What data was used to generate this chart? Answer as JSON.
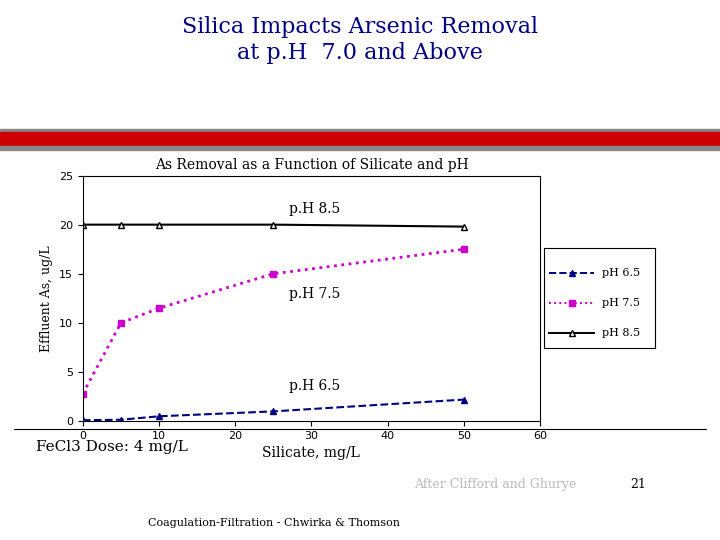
{
  "slide_title": "Silica Impacts Arsenic Removal\nat p.H  7.0 and Above",
  "chart_title": "As Removal as a Function of Silicate and pH",
  "xlabel": "Silicate, mg/L",
  "ylabel": "Effluent As, ug/L",
  "footer_left": "FeCl3 Dose: 4 mg/L",
  "footer_center": "After Clifford and Ghurye",
  "footer_page": "21",
  "footer_bottom": "Coagulation-Filtration - Chwirka & Thomson",
  "xlim": [
    0,
    60
  ],
  "ylim": [
    0,
    25
  ],
  "xticks": [
    0,
    10,
    20,
    30,
    40,
    50,
    60
  ],
  "yticks": [
    0,
    5,
    10,
    15,
    20,
    25
  ],
  "ph65": {
    "x": [
      0,
      5,
      10,
      25,
      50
    ],
    "y": [
      0.1,
      0.15,
      0.5,
      1.0,
      2.2
    ],
    "color": "#000080",
    "label": "pH 6.5",
    "linestyle": "--",
    "marker": "^",
    "annotation": "p.H 6.5",
    "ann_x": 27,
    "ann_y": 3.2
  },
  "ph75": {
    "x": [
      0,
      5,
      10,
      25,
      50
    ],
    "y": [
      2.8,
      10.0,
      11.5,
      15.0,
      17.5
    ],
    "color": "#cc00cc",
    "label": "pH 7.5",
    "linestyle": ":",
    "marker": "s",
    "annotation": "p.H 7.5",
    "ann_x": 27,
    "ann_y": 12.5
  },
  "ph85": {
    "x": [
      0,
      5,
      10,
      25,
      50
    ],
    "y": [
      20.0,
      20.0,
      20.0,
      20.0,
      19.8
    ],
    "color": "#000000",
    "label": "pH 8.5",
    "linestyle": "-",
    "marker": "^",
    "annotation": "p.H 8.5",
    "ann_x": 27,
    "ann_y": 21.2
  },
  "stripe_red": "#cc0000",
  "stripe_gray": "#888888",
  "bg_color": "#ffffff",
  "title_color": "#000080"
}
